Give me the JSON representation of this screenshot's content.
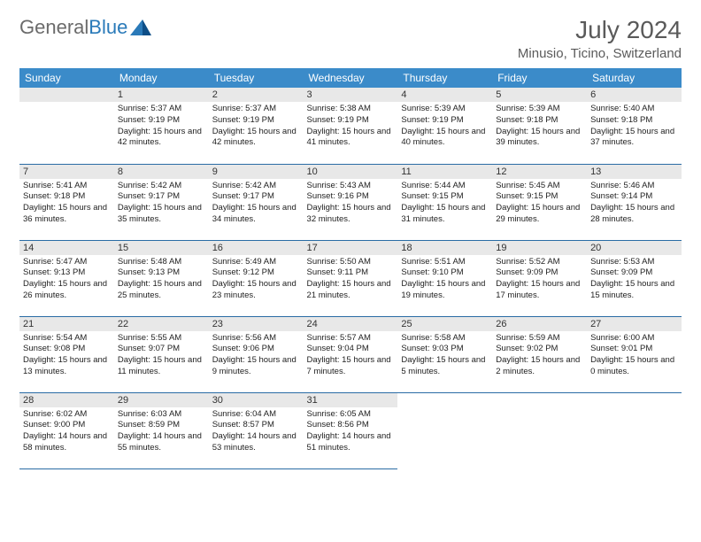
{
  "logo": {
    "textGray": "General",
    "textBlue": "Blue"
  },
  "monthTitle": "July 2024",
  "location": "Minusio, Ticino, Switzerland",
  "headerBg": "#3b8bc9",
  "borderColor": "#2a6ca5",
  "dayHeaders": [
    "Sunday",
    "Monday",
    "Tuesday",
    "Wednesday",
    "Thursday",
    "Friday",
    "Saturday"
  ],
  "weeks": [
    [
      null,
      {
        "n": "1",
        "sr": "5:37 AM",
        "ss": "9:19 PM",
        "dl": "15 hours and 42 minutes."
      },
      {
        "n": "2",
        "sr": "5:37 AM",
        "ss": "9:19 PM",
        "dl": "15 hours and 42 minutes."
      },
      {
        "n": "3",
        "sr": "5:38 AM",
        "ss": "9:19 PM",
        "dl": "15 hours and 41 minutes."
      },
      {
        "n": "4",
        "sr": "5:39 AM",
        "ss": "9:19 PM",
        "dl": "15 hours and 40 minutes."
      },
      {
        "n": "5",
        "sr": "5:39 AM",
        "ss": "9:18 PM",
        "dl": "15 hours and 39 minutes."
      },
      {
        "n": "6",
        "sr": "5:40 AM",
        "ss": "9:18 PM",
        "dl": "15 hours and 37 minutes."
      }
    ],
    [
      {
        "n": "7",
        "sr": "5:41 AM",
        "ss": "9:18 PM",
        "dl": "15 hours and 36 minutes."
      },
      {
        "n": "8",
        "sr": "5:42 AM",
        "ss": "9:17 PM",
        "dl": "15 hours and 35 minutes."
      },
      {
        "n": "9",
        "sr": "5:42 AM",
        "ss": "9:17 PM",
        "dl": "15 hours and 34 minutes."
      },
      {
        "n": "10",
        "sr": "5:43 AM",
        "ss": "9:16 PM",
        "dl": "15 hours and 32 minutes."
      },
      {
        "n": "11",
        "sr": "5:44 AM",
        "ss": "9:15 PM",
        "dl": "15 hours and 31 minutes."
      },
      {
        "n": "12",
        "sr": "5:45 AM",
        "ss": "9:15 PM",
        "dl": "15 hours and 29 minutes."
      },
      {
        "n": "13",
        "sr": "5:46 AM",
        "ss": "9:14 PM",
        "dl": "15 hours and 28 minutes."
      }
    ],
    [
      {
        "n": "14",
        "sr": "5:47 AM",
        "ss": "9:13 PM",
        "dl": "15 hours and 26 minutes."
      },
      {
        "n": "15",
        "sr": "5:48 AM",
        "ss": "9:13 PM",
        "dl": "15 hours and 25 minutes."
      },
      {
        "n": "16",
        "sr": "5:49 AM",
        "ss": "9:12 PM",
        "dl": "15 hours and 23 minutes."
      },
      {
        "n": "17",
        "sr": "5:50 AM",
        "ss": "9:11 PM",
        "dl": "15 hours and 21 minutes."
      },
      {
        "n": "18",
        "sr": "5:51 AM",
        "ss": "9:10 PM",
        "dl": "15 hours and 19 minutes."
      },
      {
        "n": "19",
        "sr": "5:52 AM",
        "ss": "9:09 PM",
        "dl": "15 hours and 17 minutes."
      },
      {
        "n": "20",
        "sr": "5:53 AM",
        "ss": "9:09 PM",
        "dl": "15 hours and 15 minutes."
      }
    ],
    [
      {
        "n": "21",
        "sr": "5:54 AM",
        "ss": "9:08 PM",
        "dl": "15 hours and 13 minutes."
      },
      {
        "n": "22",
        "sr": "5:55 AM",
        "ss": "9:07 PM",
        "dl": "15 hours and 11 minutes."
      },
      {
        "n": "23",
        "sr": "5:56 AM",
        "ss": "9:06 PM",
        "dl": "15 hours and 9 minutes."
      },
      {
        "n": "24",
        "sr": "5:57 AM",
        "ss": "9:04 PM",
        "dl": "15 hours and 7 minutes."
      },
      {
        "n": "25",
        "sr": "5:58 AM",
        "ss": "9:03 PM",
        "dl": "15 hours and 5 minutes."
      },
      {
        "n": "26",
        "sr": "5:59 AM",
        "ss": "9:02 PM",
        "dl": "15 hours and 2 minutes."
      },
      {
        "n": "27",
        "sr": "6:00 AM",
        "ss": "9:01 PM",
        "dl": "15 hours and 0 minutes."
      }
    ],
    [
      {
        "n": "28",
        "sr": "6:02 AM",
        "ss": "9:00 PM",
        "dl": "14 hours and 58 minutes."
      },
      {
        "n": "29",
        "sr": "6:03 AM",
        "ss": "8:59 PM",
        "dl": "14 hours and 55 minutes."
      },
      {
        "n": "30",
        "sr": "6:04 AM",
        "ss": "8:57 PM",
        "dl": "14 hours and 53 minutes."
      },
      {
        "n": "31",
        "sr": "6:05 AM",
        "ss": "8:56 PM",
        "dl": "14 hours and 51 minutes."
      },
      null,
      null,
      null
    ]
  ],
  "labels": {
    "sunrise": "Sunrise:",
    "sunset": "Sunset:",
    "daylight": "Daylight:"
  }
}
